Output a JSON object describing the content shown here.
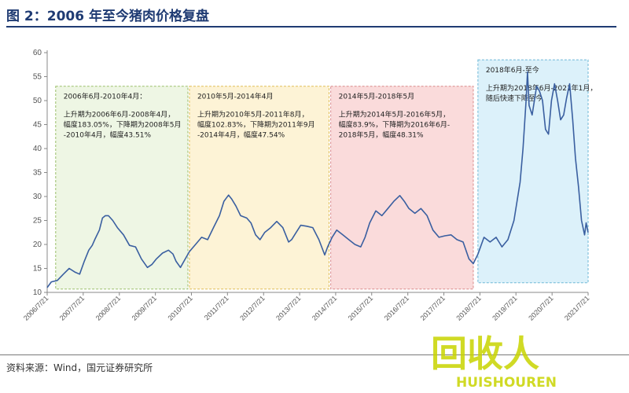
{
  "header": {
    "title": "图 2：2006 年至今猪肉价格复盘"
  },
  "footer": {
    "source": "资料来源：Wind，国元证券研究所"
  },
  "watermark": {
    "text": "回收人",
    "latin": "HUISHOUREN",
    "color": "#c8d400"
  },
  "colors": {
    "line": "#3a5fa0",
    "axis": "#888888"
  },
  "chart_data": {
    "type": "line",
    "title": "",
    "xlabel": "",
    "ylabel": "",
    "ylim": [
      10,
      60
    ],
    "yticks": [
      10,
      15,
      20,
      25,
      30,
      35,
      40,
      45,
      50,
      55,
      60
    ],
    "xlim": [
      "2006-07-21",
      "2021-07-21"
    ],
    "xticks": [
      "2006/7/21",
      "2007/7/21",
      "2008/7/21",
      "2009/7/21",
      "2010/7/21",
      "2011/7/21",
      "2012/7/21",
      "2013/7/21",
      "2014/7/21",
      "2015/7/21",
      "2016/7/21",
      "2017/7/21",
      "2018/7/21",
      "2019/7/21",
      "2020/7/21",
      "2021/7/21"
    ],
    "grid": false,
    "series": [
      {
        "values": [
          [
            "2006-07-21",
            11.0
          ],
          [
            "2006-09-01",
            12.2
          ],
          [
            "2006-11-01",
            12.5
          ],
          [
            "2007-01-01",
            13.8
          ],
          [
            "2007-03-01",
            15.0
          ],
          [
            "2007-05-01",
            14.2
          ],
          [
            "2007-06-15",
            13.8
          ],
          [
            "2007-08-01",
            16.5
          ],
          [
            "2007-09-15",
            18.8
          ],
          [
            "2007-10-20",
            19.8
          ],
          [
            "2007-11-15",
            21.0
          ],
          [
            "2008-01-01",
            23.0
          ],
          [
            "2008-02-01",
            25.5
          ],
          [
            "2008-03-01",
            26.0
          ],
          [
            "2008-04-01",
            26.0
          ],
          [
            "2008-05-15",
            25.0
          ],
          [
            "2008-07-01",
            23.5
          ],
          [
            "2008-09-01",
            22.0
          ],
          [
            "2008-11-01",
            19.8
          ],
          [
            "2009-01-01",
            19.5
          ],
          [
            "2009-03-01",
            17.0
          ],
          [
            "2009-05-01",
            15.2
          ],
          [
            "2009-06-15",
            15.8
          ],
          [
            "2009-08-01",
            17.0
          ],
          [
            "2009-10-01",
            18.2
          ],
          [
            "2009-12-01",
            18.8
          ],
          [
            "2010-01-15",
            18.0
          ],
          [
            "2010-02-15",
            16.5
          ],
          [
            "2010-04-01",
            15.2
          ],
          [
            "2010-05-15",
            16.8
          ],
          [
            "2010-07-01",
            18.5
          ],
          [
            "2010-09-01",
            20.0
          ],
          [
            "2010-11-01",
            21.5
          ],
          [
            "2011-01-01",
            21.0
          ],
          [
            "2011-03-01",
            23.5
          ],
          [
            "2011-05-01",
            26.0
          ],
          [
            "2011-06-15",
            29.0
          ],
          [
            "2011-08-01",
            30.3
          ],
          [
            "2011-09-01",
            29.5
          ],
          [
            "2011-10-15",
            28.0
          ],
          [
            "2011-12-01",
            26.0
          ],
          [
            "2012-02-01",
            25.5
          ],
          [
            "2012-03-15",
            24.5
          ],
          [
            "2012-05-01",
            22.0
          ],
          [
            "2012-06-15",
            21.0
          ],
          [
            "2012-08-01",
            22.5
          ],
          [
            "2012-10-01",
            23.5
          ],
          [
            "2012-12-01",
            24.8
          ],
          [
            "2013-02-01",
            23.5
          ],
          [
            "2013-04-01",
            20.5
          ],
          [
            "2013-05-01",
            21.0
          ],
          [
            "2013-06-15",
            22.5
          ],
          [
            "2013-08-01",
            24.0
          ],
          [
            "2013-10-01",
            23.8
          ],
          [
            "2013-12-01",
            23.5
          ],
          [
            "2014-02-01",
            21.0
          ],
          [
            "2014-04-01",
            17.8
          ],
          [
            "2014-05-01",
            19.5
          ],
          [
            "2014-06-15",
            21.5
          ],
          [
            "2014-08-01",
            23.0
          ],
          [
            "2014-10-01",
            22.0
          ],
          [
            "2014-12-01",
            21.0
          ],
          [
            "2015-02-01",
            20.0
          ],
          [
            "2015-04-01",
            19.5
          ],
          [
            "2015-05-15",
            21.5
          ],
          [
            "2015-07-01",
            24.5
          ],
          [
            "2015-09-01",
            27.0
          ],
          [
            "2015-11-01",
            26.0
          ],
          [
            "2016-01-01",
            27.5
          ],
          [
            "2016-03-01",
            29.0
          ],
          [
            "2016-05-01",
            30.2
          ],
          [
            "2016-06-15",
            29.0
          ],
          [
            "2016-08-01",
            27.5
          ],
          [
            "2016-10-01",
            26.5
          ],
          [
            "2016-12-01",
            27.5
          ],
          [
            "2017-02-01",
            26.0
          ],
          [
            "2017-04-01",
            23.0
          ],
          [
            "2017-06-01",
            21.5
          ],
          [
            "2017-08-01",
            21.8
          ],
          [
            "2017-10-01",
            22.0
          ],
          [
            "2017-12-01",
            21.0
          ],
          [
            "2018-02-01",
            20.5
          ],
          [
            "2018-04-01",
            17.0
          ],
          [
            "2018-05-15",
            16.0
          ],
          [
            "2018-07-01",
            18.0
          ],
          [
            "2018-09-01",
            21.5
          ],
          [
            "2018-11-01",
            20.5
          ],
          [
            "2019-01-01",
            21.5
          ],
          [
            "2019-03-01",
            19.5
          ],
          [
            "2019-05-01",
            21.0
          ],
          [
            "2019-07-01",
            25.0
          ],
          [
            "2019-09-01",
            33.0
          ],
          [
            "2019-10-01",
            40.0
          ],
          [
            "2019-11-01",
            50.0
          ],
          [
            "2019-11-15",
            56.0
          ],
          [
            "2019-12-01",
            49.0
          ],
          [
            "2020-01-01",
            47.0
          ],
          [
            "2020-02-15",
            53.0
          ],
          [
            "2020-03-15",
            52.0
          ],
          [
            "2020-04-15",
            50.0
          ],
          [
            "2020-05-15",
            44.0
          ],
          [
            "2020-06-15",
            43.0
          ],
          [
            "2020-07-15",
            50.0
          ],
          [
            "2020-08-15",
            53.5
          ],
          [
            "2020-09-15",
            50.0
          ],
          [
            "2020-10-15",
            46.0
          ],
          [
            "2020-11-15",
            47.0
          ],
          [
            "2020-12-15",
            50.5
          ],
          [
            "2021-01-15",
            53.5
          ],
          [
            "2021-02-15",
            46.0
          ],
          [
            "2021-03-15",
            38.0
          ],
          [
            "2021-04-15",
            32.0
          ],
          [
            "2021-05-15",
            25.0
          ],
          [
            "2021-06-15",
            22.0
          ],
          [
            "2021-07-01",
            24.5
          ],
          [
            "2021-07-21",
            22.5
          ]
        ]
      }
    ],
    "annotations": [
      {
        "fill": "#eef6e4",
        "stroke": "#9bbf6a",
        "y_top": 53,
        "y_bottom": 10.7,
        "x_from": "2006-10-15",
        "x_to": "2010-06-15",
        "lines": [
          "2006年6月-2010年4月：",
          "",
          "上升期为2006年6月-2008年4月，",
          "幅度183.05%，下降期为2008年5月",
          "-2010年4月，幅度43.51%"
        ]
      },
      {
        "fill": "#fdf3d6",
        "stroke": "#e0bd55",
        "y_top": 53,
        "y_bottom": 10.7,
        "x_from": "2010-07-01",
        "x_to": "2014-05-15",
        "lines": [
          "2010年5月-2014年4月",
          "",
          "上升期为2010年5月-2011年8月，",
          "幅度102.83%，下降期为2011年9月",
          "-2014年4月，幅度47.54%"
        ]
      },
      {
        "fill": "#fadbdb",
        "stroke": "#d98a8a",
        "y_top": 53,
        "y_bottom": 10.7,
        "x_from": "2014-06-01",
        "x_to": "2018-05-15",
        "lines": [
          "2014年5月-2018年5月",
          "",
          "上升期为2014年5月-2016年5月，",
          "幅度83.9%，下降期为2016年6月-",
          "2018年5月，幅度48.31%"
        ]
      },
      {
        "fill": "#dcf1fa",
        "stroke": "#6eb7d6",
        "y_top": 58.5,
        "y_bottom": 12,
        "x_from": "2018-07-01",
        "x_to": "2021-07-21",
        "lines": [
          "2018年6月-至今",
          "",
          "上升期为2018年6月-2021年1月，",
          "随后快速下降至今"
        ]
      }
    ]
  }
}
